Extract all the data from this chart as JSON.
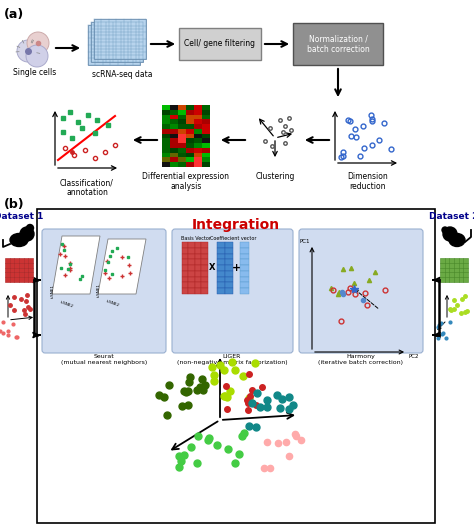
{
  "bg_color": "#ffffff",
  "panel_a_label": "(a)",
  "panel_b_label": "(b)",
  "top_row_labels": [
    "Single cells",
    "scRNA-seq data",
    "Cell/ gene filtering",
    "Normalization /\nbatch correction"
  ],
  "bottom_row_labels": [
    "Classification/\nannotation",
    "Differential expression\nanalysis",
    "Clustering",
    "Dimension\nreduction"
  ],
  "integration_title": "Integration",
  "integration_color": "#cc0000",
  "dataset1_label": "Dataset 1",
  "dataset2_label": "Dataset 2",
  "dataset_label_color": "#00008b",
  "seurat_label": "Seurat\n(mutual nearest neighbors)",
  "liger_label": "LIGER\n(non-negative matrix factorization)",
  "harmony_label": "Harmony\n(iterative batch correction)",
  "basis_vector_label": "Basis Vector",
  "coeff_vector_label": "Coeffiecient vector",
  "pc1_label": "PC1",
  "pc2_label": "PC2"
}
